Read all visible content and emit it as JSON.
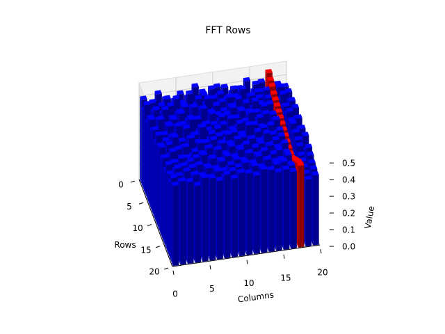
{
  "chart_data": {
    "type": "bar3d",
    "title": "FFT Rows",
    "x_label": "Columns",
    "y_label": "Rows",
    "z_label": "Value",
    "xlim": [
      0,
      20
    ],
    "xticks": [
      0,
      5,
      10,
      15,
      20
    ],
    "ylim": [
      0,
      20
    ],
    "yticks": [
      0,
      5,
      10,
      15,
      20
    ],
    "zlim": [
      0,
      0.58
    ],
    "zticks": [
      {
        "value": 0,
        "label": "0.0"
      },
      0.1,
      0.2,
      0.3,
      0.4,
      0.5
    ],
    "color": "#0000ff",
    "highlight_color": "#ff0000",
    "highlight_column": 17,
    "values": [
      [
        0.5,
        0.45,
        0.52,
        0.48,
        0.4,
        0.5,
        0.47,
        0.53,
        0.49,
        0.44,
        0.51,
        0.5,
        0.46,
        0.48,
        0.52,
        0.45,
        0.5,
        0.55,
        0.47,
        0.43
      ],
      [
        0.46,
        0.5,
        0.44,
        0.51,
        0.49,
        0.47,
        0.52,
        0.45,
        0.5,
        0.53,
        0.48,
        0.46,
        0.51,
        0.49,
        0.44,
        0.52,
        0.47,
        0.53,
        0.5,
        0.48
      ],
      [
        0.52,
        0.47,
        0.5,
        0.45,
        0.53,
        0.48,
        0.44,
        0.51,
        0.47,
        0.5,
        0.52,
        0.45,
        0.49,
        0.53,
        0.48,
        0.5,
        0.46,
        0.52,
        0.51,
        0.45
      ],
      [
        0.44,
        0.51,
        0.48,
        0.52,
        0.46,
        0.5,
        0.49,
        0.47,
        0.53,
        0.45,
        0.5,
        0.52,
        0.47,
        0.44,
        0.51,
        0.49,
        0.53,
        0.5,
        0.46,
        0.5
      ],
      [
        0.49,
        0.46,
        0.53,
        0.47,
        0.5,
        0.44,
        0.52,
        0.5,
        0.45,
        0.51,
        0.47,
        0.49,
        0.53,
        0.5,
        0.46,
        0.48,
        0.51,
        0.49,
        0.52,
        0.47
      ],
      [
        0.51,
        0.5,
        0.45,
        0.49,
        0.52,
        0.47,
        0.46,
        0.53,
        0.5,
        0.48,
        0.44,
        0.51,
        0.49,
        0.47,
        0.53,
        0.45,
        0.5,
        0.48,
        0.47,
        0.5
      ],
      [
        0.47,
        0.53,
        0.49,
        0.44,
        0.48,
        0.51,
        0.5,
        0.46,
        0.52,
        0.47,
        0.5,
        0.45,
        0.51,
        0.48,
        0.49,
        0.52,
        0.46,
        0.47,
        0.5,
        0.44
      ],
      [
        0.5,
        0.44,
        0.51,
        0.5,
        0.47,
        0.53,
        0.45,
        0.49,
        0.48,
        0.52,
        0.46,
        0.5,
        0.44,
        0.52,
        0.47,
        0.5,
        0.49,
        0.46,
        0.48,
        0.51
      ],
      [
        0.45,
        0.49,
        0.47,
        0.53,
        0.51,
        0.46,
        0.5,
        0.48,
        0.44,
        0.5,
        0.53,
        0.47,
        0.5,
        0.46,
        0.51,
        0.44,
        0.48,
        0.45,
        0.52,
        0.47
      ],
      [
        0.52,
        0.48,
        0.5,
        0.46,
        0.44,
        0.49,
        0.53,
        0.45,
        0.51,
        0.47,
        0.49,
        0.52,
        0.45,
        0.5,
        0.48,
        0.47,
        0.51,
        0.44,
        0.49,
        0.5
      ],
      [
        0.48,
        0.45,
        0.52,
        0.49,
        0.5,
        0.47,
        0.44,
        0.51,
        0.49,
        0.46,
        0.5,
        0.48,
        0.53,
        0.44,
        0.5,
        0.51,
        0.46,
        0.43,
        0.5,
        0.46
      ],
      [
        0.5,
        0.51,
        0.46,
        0.48,
        0.53,
        0.45,
        0.49,
        0.5,
        0.47,
        0.52,
        0.45,
        0.49,
        0.47,
        0.51,
        0.46,
        0.48,
        0.5,
        0.42,
        0.47,
        0.49
      ],
      [
        0.46,
        0.47,
        0.5,
        0.51,
        0.45,
        0.52,
        0.48,
        0.44,
        0.5,
        0.49,
        0.51,
        0.46,
        0.5,
        0.48,
        0.52,
        0.45,
        0.49,
        0.41,
        0.5,
        0.45
      ],
      [
        0.49,
        0.52,
        0.45,
        0.47,
        0.5,
        0.48,
        0.51,
        0.49,
        0.46,
        0.5,
        0.48,
        0.5,
        0.44,
        0.49,
        0.47,
        0.5,
        0.46,
        0.4,
        0.48,
        0.5
      ],
      [
        0.44,
        0.48,
        0.5,
        0.46,
        0.49,
        0.5,
        0.47,
        0.52,
        0.48,
        0.45,
        0.5,
        0.47,
        0.5,
        0.46,
        0.5,
        0.48,
        0.5,
        0.4,
        0.47,
        0.44
      ],
      [
        0.5,
        0.46,
        0.48,
        0.5,
        0.47,
        0.44,
        0.5,
        0.48,
        0.5,
        0.49,
        0.46,
        0.5,
        0.48,
        0.5,
        0.45,
        0.49,
        0.47,
        0.42,
        0.44,
        0.48
      ],
      [
        0.47,
        0.5,
        0.44,
        0.49,
        0.5,
        0.48,
        0.46,
        0.5,
        0.45,
        0.5,
        0.48,
        0.46,
        0.5,
        0.47,
        0.5,
        0.46,
        0.48,
        0.44,
        0.43,
        0.46
      ],
      [
        0.45,
        0.48,
        0.5,
        0.47,
        0.46,
        0.5,
        0.49,
        0.47,
        0.5,
        0.48,
        0.5,
        0.49,
        0.46,
        0.5,
        0.48,
        0.47,
        0.45,
        0.46,
        0.42,
        0.44
      ],
      [
        0.5,
        0.47,
        0.46,
        0.5,
        0.48,
        0.47,
        0.5,
        0.46,
        0.49,
        0.47,
        0.46,
        0.5,
        0.48,
        0.46,
        0.49,
        0.5,
        0.47,
        0.48,
        0.41,
        0.43
      ],
      [
        0.48,
        0.5,
        0.49,
        0.46,
        0.5,
        0.49,
        0.47,
        0.5,
        0.47,
        0.5,
        0.49,
        0.47,
        0.5,
        0.49,
        0.47,
        0.48,
        0.46,
        0.49,
        0.4,
        0.42
      ]
    ]
  }
}
